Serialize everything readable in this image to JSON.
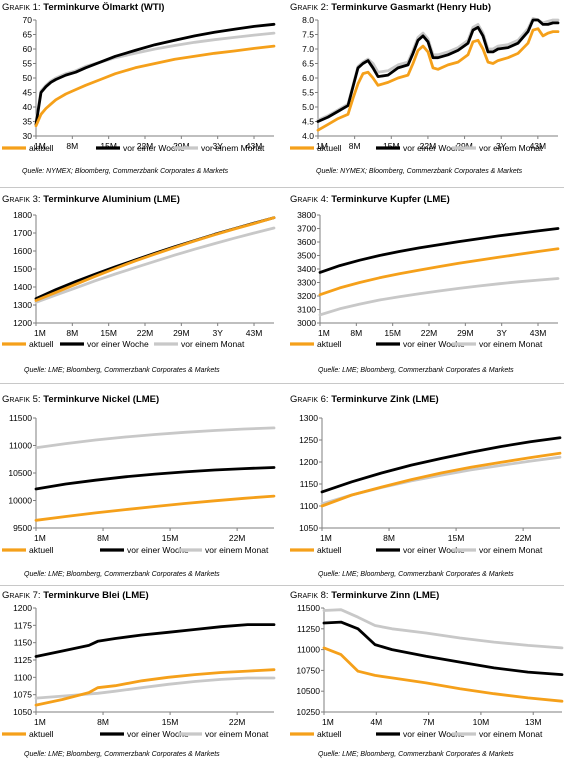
{
  "series_labels": [
    "aktuell",
    "vor einer Woche",
    "vor einem Monat"
  ],
  "colors": {
    "aktuell": "#f5a01a",
    "week": "#000000",
    "month": "#c8c8c8",
    "frame": "#7f7f7f"
  },
  "sources": {
    "nymex": "Quelle: NYMEX; Bloomberg, Commerzbank Corporates & Markets",
    "lme": "Quelle: LME; Bloomberg, Commerzbank Corporates & Markets"
  },
  "chart_data": [
    {
      "type": "line",
      "prefix": "Grafik 1:",
      "title": "Terminkurve Ölmarkt (WTI)",
      "categories": [
        "1M",
        "8M",
        "15M",
        "22M",
        "29M",
        "3Y",
        "43M"
      ],
      "ylim": [
        30,
        70
      ],
      "yticks": [
        "30",
        "35",
        "40",
        "45",
        "50",
        "55",
        "60",
        "65",
        "70"
      ],
      "x": [
        0,
        1,
        2,
        3,
        4,
        6,
        8,
        10,
        13,
        16,
        20,
        24,
        28,
        32,
        36,
        40,
        44,
        48
      ],
      "series": [
        {
          "values": [
            33.5,
            37.5,
            39.5,
            41,
            42.5,
            44.5,
            46,
            47.5,
            49.5,
            51.5,
            53.5,
            55,
            56.5,
            57.5,
            58.5,
            59.3,
            60.2,
            61
          ]
        },
        {
          "values": [
            34,
            45,
            47,
            48.5,
            49.5,
            51,
            52,
            53.5,
            55.5,
            57.5,
            59.5,
            61.5,
            63,
            64.5,
            65.8,
            66.8,
            67.8,
            68.5
          ]
        },
        {
          "values": [
            35,
            45.5,
            47.5,
            49,
            50,
            51.5,
            52.5,
            54,
            55.5,
            57,
            58.5,
            60,
            61.2,
            62.3,
            63.2,
            64,
            64.8,
            65.5
          ]
        }
      ]
    },
    {
      "type": "line",
      "prefix": "Grafik 2:",
      "title": "Terminkurve Gasmarkt (Henry Hub)",
      "categories": [
        "1M",
        "8M",
        "15M",
        "22M",
        "29M",
        "3Y",
        "43M"
      ],
      "ylim": [
        4.0,
        8.0
      ],
      "yticks": [
        "4.0",
        "4.5",
        "5.0",
        "5.5",
        "6.0",
        "6.5",
        "7.0",
        "7.5",
        "8.0"
      ],
      "x": [
        0,
        2,
        4,
        6,
        7,
        8,
        9,
        10,
        11,
        12,
        14,
        16,
        18,
        19,
        20,
        21,
        22,
        23,
        24,
        26,
        28,
        30,
        31,
        32,
        33,
        34,
        35,
        36,
        38,
        40,
        42,
        43,
        44,
        45,
        46,
        47,
        48
      ],
      "series": [
        {
          "values": [
            4.2,
            4.4,
            4.6,
            4.75,
            5.3,
            5.8,
            6.15,
            6.2,
            6.0,
            5.75,
            5.85,
            6.0,
            6.1,
            6.5,
            6.95,
            7.1,
            6.9,
            6.35,
            6.3,
            6.45,
            6.55,
            6.8,
            7.25,
            7.3,
            7.0,
            6.55,
            6.5,
            6.6,
            6.7,
            6.85,
            7.2,
            7.65,
            7.7,
            7.45,
            7.55,
            7.6,
            7.6
          ]
        },
        {
          "values": [
            4.5,
            4.65,
            4.85,
            5.05,
            5.7,
            6.35,
            6.5,
            6.6,
            6.35,
            6.05,
            6.1,
            6.35,
            6.45,
            6.85,
            7.3,
            7.45,
            7.25,
            6.7,
            6.7,
            6.8,
            6.95,
            7.2,
            7.65,
            7.75,
            7.45,
            6.9,
            6.9,
            7.0,
            7.05,
            7.2,
            7.6,
            8.0,
            8.0,
            7.85,
            7.85,
            7.9,
            7.9
          ]
        },
        {
          "values": [
            4.55,
            4.7,
            4.9,
            5.1,
            5.75,
            6.4,
            6.55,
            6.65,
            6.5,
            6.2,
            6.25,
            6.45,
            6.55,
            6.95,
            7.4,
            7.55,
            7.35,
            6.8,
            6.8,
            6.9,
            7.05,
            7.3,
            7.75,
            7.85,
            7.55,
            7.0,
            7.0,
            7.1,
            7.15,
            7.3,
            7.7,
            8.05,
            8.0,
            7.9,
            7.95,
            8.0,
            8.0
          ]
        }
      ]
    },
    {
      "type": "line",
      "prefix": "Grafik 3:",
      "title": "Terminkurve Aluminium (LME)",
      "categories": [
        "1M",
        "8M",
        "15M",
        "22M",
        "29M",
        "3Y",
        "43M"
      ],
      "ylim": [
        1200,
        1800
      ],
      "yticks": [
        "1200",
        "1300",
        "1400",
        "1500",
        "1600",
        "1700",
        "1800"
      ],
      "x": [
        0,
        4,
        8,
        12,
        16,
        20,
        24,
        28,
        32,
        36,
        40,
        44,
        48
      ],
      "series": [
        {
          "values": [
            1325,
            1370,
            1415,
            1460,
            1503,
            1545,
            1583,
            1620,
            1656,
            1690,
            1722,
            1753,
            1785
          ]
        },
        {
          "values": [
            1335,
            1385,
            1430,
            1472,
            1512,
            1550,
            1588,
            1624,
            1658,
            1692,
            1724,
            1755,
            1785
          ]
        },
        {
          "values": [
            1315,
            1355,
            1395,
            1435,
            1472,
            1508,
            1543,
            1577,
            1610,
            1641,
            1671,
            1700,
            1728
          ]
        }
      ]
    },
    {
      "type": "line",
      "prefix": "Grafik 4:",
      "title": "Terminkurve Kupfer (LME)",
      "categories": [
        "1M",
        "8M",
        "15M",
        "22M",
        "29M",
        "3Y",
        "43M"
      ],
      "ylim": [
        3000,
        3800
      ],
      "yticks": [
        "3000",
        "3100",
        "3200",
        "3300",
        "3400",
        "3500",
        "3600",
        "3700",
        "3800"
      ],
      "x": [
        0,
        4,
        8,
        12,
        16,
        20,
        24,
        28,
        32,
        36,
        40,
        44,
        48
      ],
      "series": [
        {
          "values": [
            3210,
            3260,
            3300,
            3335,
            3365,
            3392,
            3418,
            3442,
            3465,
            3487,
            3508,
            3530,
            3550
          ]
        },
        {
          "values": [
            3375,
            3425,
            3465,
            3500,
            3530,
            3556,
            3580,
            3603,
            3624,
            3645,
            3664,
            3682,
            3700
          ]
        },
        {
          "values": [
            3060,
            3105,
            3140,
            3170,
            3195,
            3217,
            3237,
            3256,
            3274,
            3290,
            3305,
            3318,
            3330
          ]
        }
      ]
    },
    {
      "type": "line",
      "prefix": "Grafik 5:",
      "title": "Terminkurve Nickel (LME)",
      "categories": [
        "1M",
        "8M",
        "15M",
        "22M"
      ],
      "ylim": [
        9500,
        11500
      ],
      "yticks": [
        "9500",
        "10000",
        "10500",
        "11000",
        "11500"
      ],
      "x": [
        0,
        3,
        6,
        9,
        12,
        15,
        18,
        21,
        24
      ],
      "series": [
        {
          "values": [
            9640,
            9710,
            9775,
            9835,
            9890,
            9945,
            9995,
            10040,
            10080
          ]
        },
        {
          "values": [
            10210,
            10300,
            10370,
            10430,
            10480,
            10520,
            10555,
            10580,
            10600
          ]
        },
        {
          "values": [
            10960,
            11035,
            11100,
            11155,
            11200,
            11240,
            11272,
            11300,
            11320
          ]
        }
      ]
    },
    {
      "type": "line",
      "prefix": "Grafik 6:",
      "title": "Terminkurve Zink (LME)",
      "categories": [
        "1M",
        "8M",
        "15M",
        "22M"
      ],
      "ylim": [
        1050,
        1300
      ],
      "yticks": [
        "1050",
        "1100",
        "1150",
        "1200",
        "1250",
        "1300"
      ],
      "x": [
        0,
        3,
        6,
        9,
        12,
        15,
        18,
        21,
        24
      ],
      "series": [
        {
          "values": [
            1100,
            1125,
            1143,
            1160,
            1175,
            1188,
            1199,
            1210,
            1220
          ]
        },
        {
          "values": [
            1132,
            1155,
            1175,
            1193,
            1208,
            1222,
            1235,
            1246,
            1255
          ]
        },
        {
          "values": [
            1105,
            1125,
            1142,
            1157,
            1170,
            1182,
            1192,
            1202,
            1211
          ]
        }
      ]
    },
    {
      "type": "line",
      "prefix": "Grafik 7:",
      "title": "Terminkurve Blei (LME)",
      "categories": [
        "1M",
        "8M",
        "15M",
        "22M"
      ],
      "ylim": [
        1050,
        1200
      ],
      "yticks": [
        "1050",
        "1075",
        "1100",
        "1125",
        "1150",
        "1175",
        "1200"
      ],
      "x": [
        0,
        3,
        6,
        7,
        9,
        12,
        15,
        18,
        21,
        24,
        27
      ],
      "series": [
        {
          "values": [
            1060,
            1068,
            1078,
            1085,
            1088,
            1095,
            1100,
            1104,
            1107,
            1109,
            1111
          ]
        },
        {
          "values": [
            1130,
            1138,
            1146,
            1152,
            1156,
            1161,
            1165,
            1169,
            1173,
            1176,
            1176
          ]
        },
        {
          "values": [
            1070,
            1073,
            1076,
            1077,
            1080,
            1085,
            1090,
            1094,
            1097,
            1099,
            1099
          ]
        }
      ]
    },
    {
      "type": "line",
      "prefix": "Grafik 8:",
      "title": "Terminkurve Zinn (LME)",
      "categories": [
        "1M",
        "4M",
        "7M",
        "10M",
        "13M"
      ],
      "ylim": [
        10250,
        11500
      ],
      "yticks": [
        "10250",
        "10500",
        "10750",
        "11000",
        "11250",
        "11500"
      ],
      "x": [
        0,
        1,
        2,
        3,
        4,
        6,
        8,
        10,
        12,
        14
      ],
      "series": [
        {
          "values": [
            11020,
            10940,
            10740,
            10690,
            10660,
            10600,
            10530,
            10470,
            10420,
            10380
          ]
        },
        {
          "values": [
            11320,
            11330,
            11250,
            11060,
            11000,
            10920,
            10850,
            10780,
            10730,
            10700
          ]
        },
        {
          "values": [
            11470,
            11480,
            11390,
            11290,
            11250,
            11200,
            11140,
            11090,
            11050,
            11020
          ]
        }
      ]
    }
  ]
}
